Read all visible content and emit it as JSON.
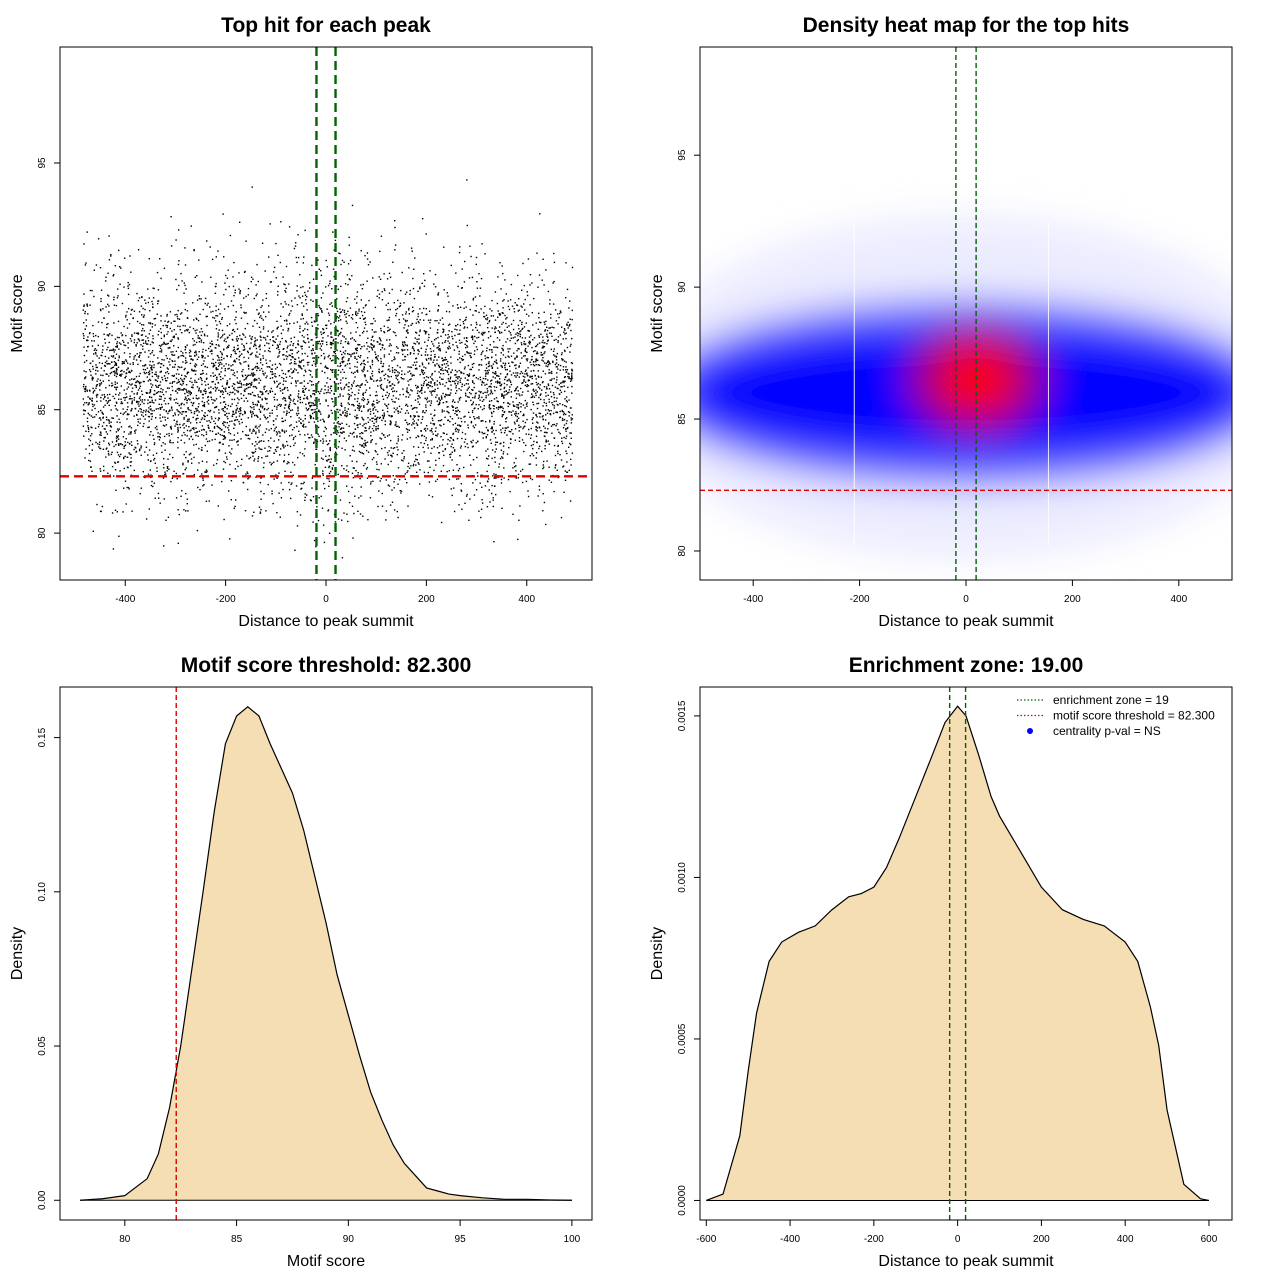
{
  "chart_data": [
    {
      "type": "scatter",
      "title": "Top hit for each peak",
      "xlabel": "Distance to peak summit",
      "ylabel": "Motif score",
      "xlim": [
        -530,
        530
      ],
      "ylim": [
        78.1,
        99.7
      ],
      "xticks": [
        -400,
        -200,
        0,
        200,
        400
      ],
      "yticks": [
        80,
        85,
        90,
        95
      ],
      "point_distribution": {
        "n": 6200,
        "x_range": [
          -485,
          490
        ],
        "y_center": 86.0,
        "y_sd": 2.5,
        "y_min": 78.8,
        "y_max": 96.9
      },
      "vlines": [
        {
          "x": -19,
          "color": "#006400",
          "style": "dashed"
        },
        {
          "x": 19,
          "color": "#006400",
          "style": "dashed"
        }
      ],
      "hlines": [
        {
          "y": 82.3,
          "color": "#e00000",
          "style": "dashed"
        }
      ]
    },
    {
      "type": "heatmap",
      "title": "Density heat map for the top hits",
      "xlabel": "Distance to peak summit",
      "ylabel": "Motif score",
      "xlim": [
        -500,
        500
      ],
      "ylim": [
        78.9,
        99.1
      ],
      "xticks": [
        -400,
        -200,
        0,
        200,
        400
      ],
      "yticks": [
        80,
        85,
        90,
        95
      ],
      "density_peak": {
        "x": 20,
        "y": 86.5
      },
      "color_scale": [
        "#ffffff",
        "#0000ff",
        "#ff0000"
      ],
      "vlines": [
        {
          "x": -19,
          "color": "#006400",
          "style": "dashed"
        },
        {
          "x": 19,
          "color": "#006400",
          "style": "dashed"
        }
      ],
      "hlines": [
        {
          "y": 82.3,
          "color": "#e00000",
          "style": "dashed"
        }
      ]
    },
    {
      "type": "area",
      "title": "Motif score threshold: 82.300",
      "xlabel": "Motif score",
      "ylabel": "Density",
      "xlim": [
        77.1,
        100.9
      ],
      "ylim": [
        -0.0064,
        0.1664
      ],
      "xticks": [
        80,
        85,
        90,
        95,
        100
      ],
      "yticks": [
        "0.00",
        "0.05",
        "0.10",
        "0.15"
      ],
      "fill_color": "#f5deb3",
      "x": [
        78,
        79,
        80,
        81,
        81.5,
        82,
        82.5,
        83,
        83.5,
        84,
        84.5,
        85,
        85.5,
        86,
        86.5,
        87,
        87.5,
        88,
        88.5,
        89,
        89.5,
        90,
        90.5,
        91,
        91.5,
        92,
        92.5,
        93,
        93.5,
        94,
        94.5,
        95,
        96,
        97,
        98,
        99,
        100
      ],
      "y": [
        0.0,
        0.0005,
        0.0015,
        0.007,
        0.015,
        0.03,
        0.05,
        0.075,
        0.1,
        0.126,
        0.148,
        0.157,
        0.16,
        0.157,
        0.148,
        0.14,
        0.132,
        0.12,
        0.105,
        0.09,
        0.073,
        0.06,
        0.047,
        0.035,
        0.026,
        0.018,
        0.012,
        0.008,
        0.004,
        0.003,
        0.002,
        0.0015,
        0.0008,
        0.0003,
        0.0003,
        0.0001,
        0.0
      ],
      "vlines": [
        {
          "x": 82.3,
          "color": "#e00000",
          "style": "dashed"
        }
      ]
    },
    {
      "type": "area",
      "title": "Enrichment zone: 19.00",
      "xlabel": "Distance to peak summit",
      "ylabel": "Density",
      "xlim": [
        -615,
        655
      ],
      "ylim": [
        -6.05e-05,
        0.0015895
      ],
      "xticks": [
        -600,
        -400,
        -200,
        0,
        200,
        400,
        600
      ],
      "yticks": [
        "0.0000",
        "0.0005",
        "0.0010",
        "0.0015"
      ],
      "fill_color": "#f5deb3",
      "x": [
        -600,
        -560,
        -520,
        -500,
        -480,
        -450,
        -420,
        -380,
        -340,
        -300,
        -260,
        -230,
        -200,
        -170,
        -140,
        -100,
        -60,
        -30,
        0,
        20,
        50,
        80,
        100,
        150,
        200,
        250,
        300,
        350,
        400,
        430,
        460,
        480,
        500,
        540,
        580,
        600
      ],
      "y": [
        0.0,
        2e-05,
        0.0002,
        0.0004,
        0.00058,
        0.00074,
        0.0008,
        0.00083,
        0.00085,
        0.0009,
        0.00094,
        0.00095,
        0.00097,
        0.00103,
        0.00112,
        0.00125,
        0.00138,
        0.00148,
        0.00153,
        0.0015,
        0.00138,
        0.00125,
        0.00119,
        0.00108,
        0.00097,
        0.0009,
        0.00087,
        0.00085,
        0.0008,
        0.00074,
        0.0006,
        0.00048,
        0.00028,
        5e-05,
        5e-06,
        0.0
      ],
      "vlines": [
        {
          "x": -19,
          "color": "#006400",
          "style": "dashed"
        },
        {
          "x": 19,
          "color": "#006400",
          "style": "dashed"
        }
      ],
      "legend": {
        "placement": "top-right",
        "entries": [
          {
            "label": "enrichment zone = 19",
            "color": "#006400",
            "marker": "dotted-line"
          },
          {
            "label": "motif score threshold = 82.300",
            "color": "#e00000",
            "marker": "dotted-line"
          },
          {
            "label": "centrality p-val = NS",
            "color": "#0000ff",
            "marker": "dot"
          }
        ]
      }
    }
  ]
}
